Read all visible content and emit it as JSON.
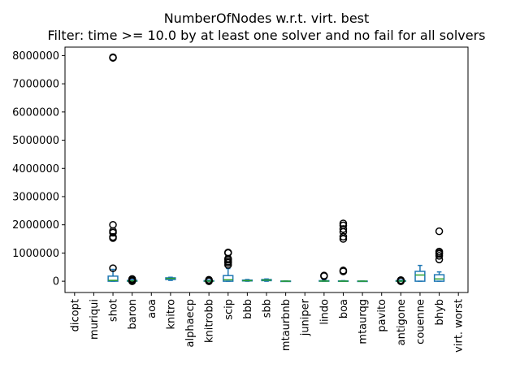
{
  "chart_data": {
    "type": "box",
    "title": "NumberOfNodes w.r.t. virt. best",
    "subtitle": "Filter: time >= 10.0 by at least one solver and no fail for all solvers",
    "xlabel": "",
    "ylabel": "",
    "ylim": [
      -400000,
      8300000
    ],
    "yticks": [
      0,
      1000000,
      2000000,
      3000000,
      4000000,
      5000000,
      6000000,
      7000000,
      8000000
    ],
    "ytick_labels": [
      "0",
      "1000000",
      "2000000",
      "3000000",
      "4000000",
      "5000000",
      "6000000",
      "7000000",
      "8000000"
    ],
    "grid": false,
    "legend": false,
    "colors": {
      "box": "#1f77b4",
      "median": "#2ca02c",
      "whisker": "#1f77b4",
      "flier": "#000000",
      "axis": "#000000",
      "background": "#ffffff"
    },
    "categories": [
      "dicopt",
      "muriqui",
      "shot",
      "baron",
      "aoa",
      "knitro",
      "alphaecp",
      "knitrobb",
      "scip",
      "bbb",
      "sbb",
      "mtaurbnb",
      "juniper",
      "lindo",
      "boa",
      "mtaurqg",
      "pavito",
      "antigone",
      "couenne",
      "bhyb",
      "virt. worst"
    ],
    "boxes": [
      null,
      null,
      {
        "whislo": 0,
        "q1": 0,
        "med": 30000,
        "q3": 180000,
        "whishi": 420000,
        "fliers": [
          460000,
          1530000,
          1570000,
          1720000,
          1780000,
          2000000,
          7920000,
          7940000
        ]
      },
      {
        "whislo": 0,
        "q1": 0,
        "med": 10000,
        "q3": 30000,
        "whishi": 60000,
        "fliers": [
          0,
          20000,
          60000,
          80000
        ]
      },
      null,
      {
        "whislo": 30000,
        "q1": 60000,
        "med": 100000,
        "q3": 120000,
        "whishi": 140000,
        "fliers": []
      },
      null,
      {
        "whislo": 0,
        "q1": 0,
        "med": 5000,
        "q3": 20000,
        "whishi": 40000,
        "fliers": [
          0,
          20000,
          50000
        ]
      },
      {
        "whislo": 0,
        "q1": 0,
        "med": 50000,
        "q3": 200000,
        "whishi": 450000,
        "fliers": [
          580000,
          650000,
          700000,
          760000,
          800000,
          1000000,
          1020000
        ]
      },
      {
        "whislo": 0,
        "q1": 10000,
        "med": 20000,
        "q3": 40000,
        "whishi": 60000,
        "fliers": []
      },
      {
        "whislo": 0,
        "q1": 20000,
        "med": 40000,
        "q3": 60000,
        "whishi": 80000,
        "fliers": []
      },
      {
        "whislo": 0,
        "q1": 0,
        "med": 2000,
        "q3": 5000,
        "whishi": 10000,
        "fliers": []
      },
      null,
      {
        "whislo": 0,
        "q1": 0,
        "med": 5000,
        "q3": 20000,
        "whishi": 40000,
        "fliers": [
          180000,
          200000
        ]
      },
      {
        "whislo": 0,
        "q1": 0,
        "med": 2000,
        "q3": 10000,
        "whishi": 20000,
        "fliers": [
          350000,
          380000,
          1500000,
          1580000,
          1750000,
          1850000,
          1980000,
          2050000
        ]
      },
      {
        "whislo": 0,
        "q1": 0,
        "med": 2000,
        "q3": 5000,
        "whishi": 10000,
        "fliers": []
      },
      null,
      {
        "whislo": 0,
        "q1": 0,
        "med": 5000,
        "q3": 20000,
        "whishi": 40000,
        "fliers": [
          0,
          20000,
          40000
        ]
      },
      {
        "whislo": 0,
        "q1": 0,
        "med": 220000,
        "q3": 350000,
        "whishi": 560000,
        "fliers": []
      },
      {
        "whislo": 0,
        "q1": 0,
        "med": 80000,
        "q3": 230000,
        "whishi": 330000,
        "fliers": [
          770000,
          900000,
          970000,
          1000000,
          1050000,
          1770000
        ]
      },
      null
    ]
  }
}
